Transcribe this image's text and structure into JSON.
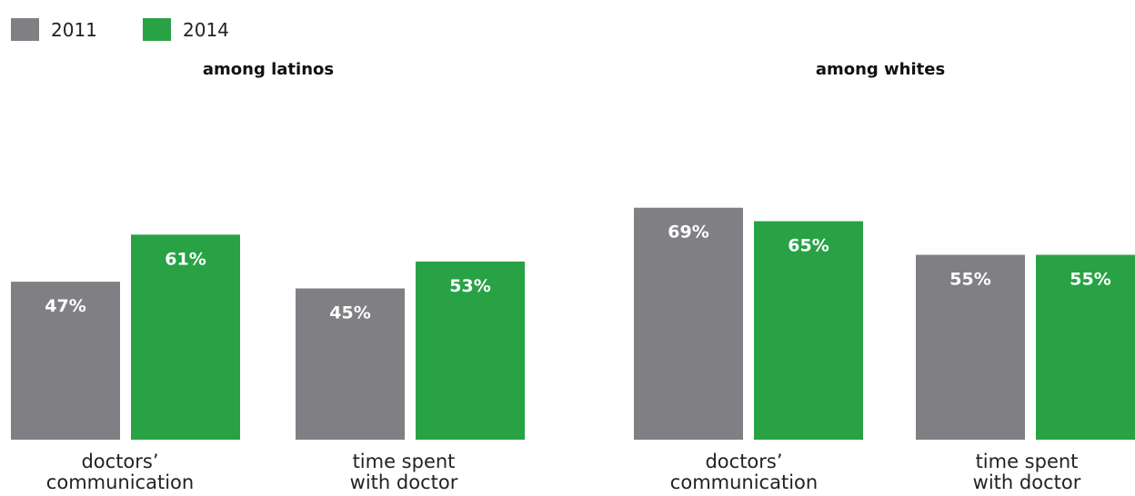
{
  "chart_data": {
    "type": "bar",
    "legend": [
      {
        "name": "2011",
        "color": "#808084"
      },
      {
        "name": "2014",
        "color": "#28a245"
      }
    ],
    "legend_position": "top-left",
    "grid": false,
    "ylim": [
      0,
      100
    ],
    "value_suffix": "%",
    "panels": [
      {
        "title": "among latinos",
        "categories": [
          [
            "doctors’",
            "communication"
          ],
          [
            "time spent",
            "with doctor"
          ]
        ],
        "series": [
          {
            "name": "2011",
            "values": [
              47,
              45
            ]
          },
          {
            "name": "2014",
            "values": [
              61,
              53
            ]
          }
        ]
      },
      {
        "title": "among whites",
        "categories": [
          [
            "doctors’",
            "communication"
          ],
          [
            "time spent",
            "with doctor"
          ]
        ],
        "series": [
          {
            "name": "2011",
            "values": [
              69,
              55
            ]
          },
          {
            "name": "2014",
            "values": [
              65,
              55
            ]
          }
        ]
      }
    ]
  }
}
